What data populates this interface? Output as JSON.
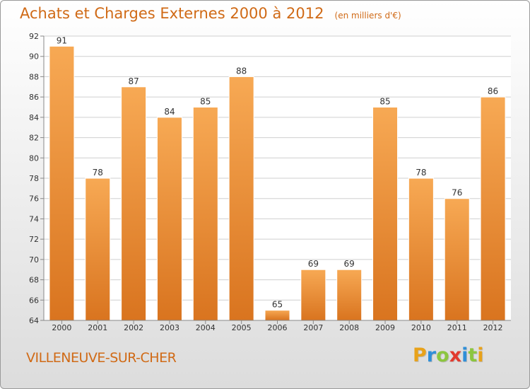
{
  "chart_title": "Achats et Charges Externes 2000 à 2012",
  "chart_subtitle": "(en milliers d'€)",
  "commune": "VILLENEUVE-SUR-CHER",
  "brand": {
    "letters": [
      "P",
      "r",
      "o",
      "x",
      "i",
      "t",
      "i"
    ],
    "colors": [
      "#e8a21a",
      "#2f8fd8",
      "#8cc63f",
      "#e23a2e",
      "#2f8fd8",
      "#8cc63f",
      "#e8a21a"
    ]
  },
  "colors": {
    "bar_light": "#f7a954",
    "bar_dark": "#d9741f",
    "grid": "#cfcfcf",
    "title": "#d06a16"
  },
  "chart_data": {
    "type": "bar",
    "title": "Achats et Charges Externes 2000 à 2012",
    "subtitle": "(en milliers d'€)",
    "xlabel": "",
    "ylabel": "",
    "categories": [
      "2000",
      "2001",
      "2002",
      "2003",
      "2004",
      "2005",
      "2006",
      "2007",
      "2008",
      "2009",
      "2010",
      "2011",
      "2012"
    ],
    "values": [
      91,
      78,
      87,
      84,
      85,
      88,
      65,
      69,
      69,
      85,
      78,
      76,
      86
    ],
    "ylim": [
      64,
      92
    ],
    "yticks": [
      64,
      66,
      68,
      70,
      72,
      74,
      76,
      78,
      80,
      82,
      84,
      86,
      88,
      90,
      92
    ],
    "grid": true
  }
}
